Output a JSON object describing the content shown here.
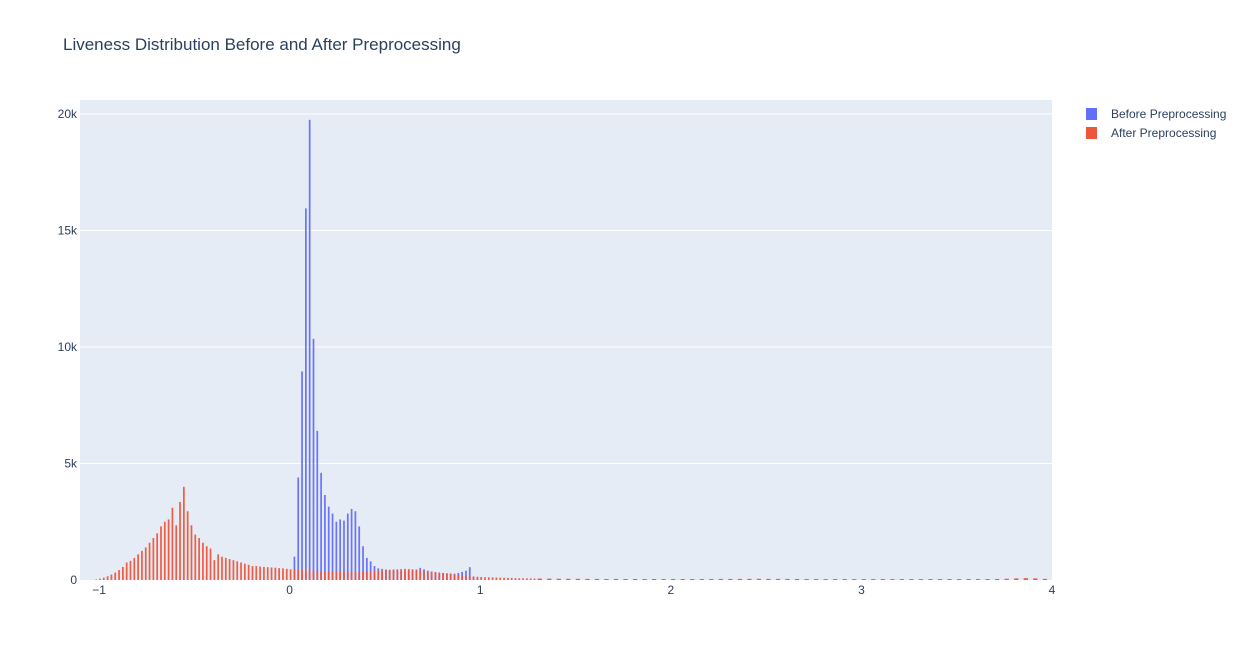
{
  "chart_data": {
    "type": "bar",
    "title": "Liveness Distribution Before and After Preprocessing",
    "xlabel": "",
    "ylabel": "",
    "xlim": [
      -1.1,
      4.0
    ],
    "ylim": [
      0,
      20600
    ],
    "x_ticks": [
      -1,
      0,
      1,
      2,
      3,
      4
    ],
    "x_tick_labels": [
      "−1",
      "0",
      "1",
      "2",
      "3",
      "4"
    ],
    "y_ticks": [
      0,
      5000,
      10000,
      15000,
      20000
    ],
    "y_tick_labels": [
      "0",
      "5k",
      "10k",
      "15k",
      "20k"
    ],
    "grid": true,
    "legend_position": "top-right",
    "series": [
      {
        "name": "Before Preprocessing",
        "color": "#636efa",
        "bins": [
          [
            0.03,
            1000
          ],
          [
            0.05,
            4400
          ],
          [
            0.07,
            8950
          ],
          [
            0.09,
            15950
          ],
          [
            0.11,
            19750
          ],
          [
            0.13,
            10350
          ],
          [
            0.15,
            6400
          ],
          [
            0.17,
            4600
          ],
          [
            0.19,
            3650
          ],
          [
            0.21,
            3150
          ],
          [
            0.23,
            2850
          ],
          [
            0.25,
            2500
          ],
          [
            0.27,
            2600
          ],
          [
            0.29,
            2550
          ],
          [
            0.31,
            2850
          ],
          [
            0.33,
            3050
          ],
          [
            0.35,
            2950
          ],
          [
            0.37,
            2300
          ],
          [
            0.39,
            1450
          ],
          [
            0.41,
            950
          ],
          [
            0.43,
            800
          ],
          [
            0.45,
            600
          ],
          [
            0.47,
            500
          ],
          [
            0.49,
            480
          ],
          [
            0.51,
            450
          ],
          [
            0.53,
            430
          ],
          [
            0.55,
            410
          ],
          [
            0.57,
            400
          ],
          [
            0.59,
            390
          ],
          [
            0.61,
            380
          ],
          [
            0.63,
            400
          ],
          [
            0.65,
            420
          ],
          [
            0.67,
            450
          ],
          [
            0.69,
            520
          ],
          [
            0.71,
            460
          ],
          [
            0.73,
            400
          ],
          [
            0.75,
            360
          ],
          [
            0.77,
            330
          ],
          [
            0.79,
            310
          ],
          [
            0.81,
            300
          ],
          [
            0.83,
            290
          ],
          [
            0.85,
            280
          ],
          [
            0.87,
            270
          ],
          [
            0.89,
            300
          ],
          [
            0.91,
            350
          ],
          [
            0.93,
            400
          ],
          [
            0.95,
            550
          ],
          [
            0.97,
            150
          ],
          [
            0.99,
            80
          ]
        ]
      },
      {
        "name": "After Preprocessing",
        "color": "#ef553b",
        "bins": [
          [
            -1.02,
            20
          ],
          [
            -1.0,
            60
          ],
          [
            -0.98,
            100
          ],
          [
            -0.96,
            160
          ],
          [
            -0.94,
            230
          ],
          [
            -0.92,
            320
          ],
          [
            -0.9,
            430
          ],
          [
            -0.88,
            560
          ],
          [
            -0.86,
            750
          ],
          [
            -0.84,
            820
          ],
          [
            -0.82,
            950
          ],
          [
            -0.8,
            1100
          ],
          [
            -0.78,
            1250
          ],
          [
            -0.76,
            1400
          ],
          [
            -0.74,
            1600
          ],
          [
            -0.72,
            1800
          ],
          [
            -0.7,
            2000
          ],
          [
            -0.68,
            2300
          ],
          [
            -0.66,
            2500
          ],
          [
            -0.64,
            2600
          ],
          [
            -0.62,
            3100
          ],
          [
            -0.6,
            2350
          ],
          [
            -0.58,
            3350
          ],
          [
            -0.56,
            4000
          ],
          [
            -0.54,
            2950
          ],
          [
            -0.52,
            2350
          ],
          [
            -0.5,
            1950
          ],
          [
            -0.48,
            1800
          ],
          [
            -0.46,
            1600
          ],
          [
            -0.44,
            1450
          ],
          [
            -0.42,
            1350
          ],
          [
            -0.4,
            850
          ],
          [
            -0.38,
            1100
          ],
          [
            -0.36,
            1000
          ],
          [
            -0.34,
            950
          ],
          [
            -0.32,
            900
          ],
          [
            -0.3,
            850
          ],
          [
            -0.28,
            800
          ],
          [
            -0.26,
            750
          ],
          [
            -0.24,
            700
          ],
          [
            -0.22,
            650
          ],
          [
            -0.2,
            600
          ],
          [
            -0.18,
            600
          ],
          [
            -0.16,
            580
          ],
          [
            -0.14,
            560
          ],
          [
            -0.12,
            550
          ],
          [
            -0.1,
            540
          ],
          [
            -0.08,
            530
          ],
          [
            -0.06,
            510
          ],
          [
            -0.04,
            500
          ],
          [
            -0.02,
            480
          ],
          [
            0.0,
            460
          ],
          [
            0.02,
            470
          ],
          [
            0.04,
            450
          ],
          [
            0.06,
            440
          ],
          [
            0.08,
            430
          ],
          [
            0.1,
            420
          ],
          [
            0.12,
            400
          ],
          [
            0.14,
            390
          ],
          [
            0.16,
            380
          ],
          [
            0.18,
            370
          ],
          [
            0.2,
            360
          ],
          [
            0.22,
            370
          ],
          [
            0.24,
            380
          ],
          [
            0.26,
            390
          ],
          [
            0.28,
            400
          ],
          [
            0.3,
            380
          ],
          [
            0.32,
            370
          ],
          [
            0.34,
            360
          ],
          [
            0.36,
            350
          ],
          [
            0.38,
            370
          ],
          [
            0.4,
            380
          ],
          [
            0.42,
            390
          ],
          [
            0.44,
            400
          ],
          [
            0.46,
            410
          ],
          [
            0.48,
            420
          ],
          [
            0.5,
            430
          ],
          [
            0.52,
            440
          ],
          [
            0.54,
            450
          ],
          [
            0.56,
            460
          ],
          [
            0.58,
            470
          ],
          [
            0.6,
            480
          ],
          [
            0.62,
            470
          ],
          [
            0.64,
            460
          ],
          [
            0.66,
            440
          ],
          [
            0.68,
            420
          ],
          [
            0.7,
            400
          ],
          [
            0.72,
            380
          ],
          [
            0.74,
            360
          ],
          [
            0.76,
            340
          ],
          [
            0.78,
            320
          ],
          [
            0.8,
            300
          ],
          [
            0.82,
            280
          ],
          [
            0.84,
            260
          ],
          [
            0.86,
            240
          ],
          [
            0.88,
            220
          ],
          [
            0.9,
            200
          ],
          [
            0.92,
            180
          ],
          [
            0.94,
            160
          ],
          [
            0.96,
            150
          ],
          [
            0.98,
            140
          ],
          [
            1.0,
            130
          ],
          [
            1.02,
            120
          ],
          [
            1.04,
            115
          ],
          [
            1.06,
            110
          ],
          [
            1.08,
            105
          ],
          [
            1.1,
            100
          ],
          [
            1.12,
            95
          ],
          [
            1.14,
            90
          ],
          [
            1.16,
            85
          ],
          [
            1.18,
            80
          ],
          [
            1.2,
            75
          ],
          [
            1.22,
            70
          ],
          [
            1.24,
            68
          ],
          [
            1.26,
            66
          ],
          [
            1.28,
            64
          ],
          [
            1.3,
            62
          ],
          [
            1.35,
            58
          ],
          [
            1.4,
            55
          ],
          [
            1.45,
            52
          ],
          [
            1.5,
            50
          ],
          [
            1.55,
            48
          ],
          [
            1.6,
            46
          ],
          [
            1.65,
            45
          ],
          [
            1.7,
            44
          ],
          [
            1.75,
            43
          ],
          [
            1.8,
            42
          ],
          [
            1.85,
            42
          ],
          [
            1.9,
            42
          ],
          [
            1.95,
            42
          ],
          [
            2.0,
            42
          ],
          [
            2.05,
            42
          ],
          [
            2.1,
            42
          ],
          [
            2.15,
            43
          ],
          [
            2.2,
            44
          ],
          [
            2.25,
            45
          ],
          [
            2.3,
            46
          ],
          [
            2.35,
            48
          ],
          [
            2.4,
            50
          ],
          [
            2.45,
            52
          ],
          [
            2.5,
            50
          ],
          [
            2.55,
            48
          ],
          [
            2.6,
            46
          ],
          [
            2.65,
            44
          ],
          [
            2.7,
            42
          ],
          [
            2.75,
            40
          ],
          [
            2.8,
            40
          ],
          [
            2.85,
            40
          ],
          [
            2.9,
            40
          ],
          [
            2.95,
            40
          ],
          [
            3.0,
            40
          ],
          [
            3.05,
            40
          ],
          [
            3.1,
            40
          ],
          [
            3.15,
            40
          ],
          [
            3.2,
            40
          ],
          [
            3.25,
            40
          ],
          [
            3.3,
            40
          ],
          [
            3.35,
            40
          ],
          [
            3.4,
            40
          ],
          [
            3.45,
            40
          ],
          [
            3.5,
            40
          ],
          [
            3.55,
            40
          ],
          [
            3.6,
            40
          ],
          [
            3.65,
            42
          ],
          [
            3.7,
            45
          ],
          [
            3.75,
            55
          ],
          [
            3.8,
            70
          ],
          [
            3.85,
            80
          ],
          [
            3.9,
            70
          ],
          [
            3.95,
            50
          ]
        ]
      }
    ]
  }
}
